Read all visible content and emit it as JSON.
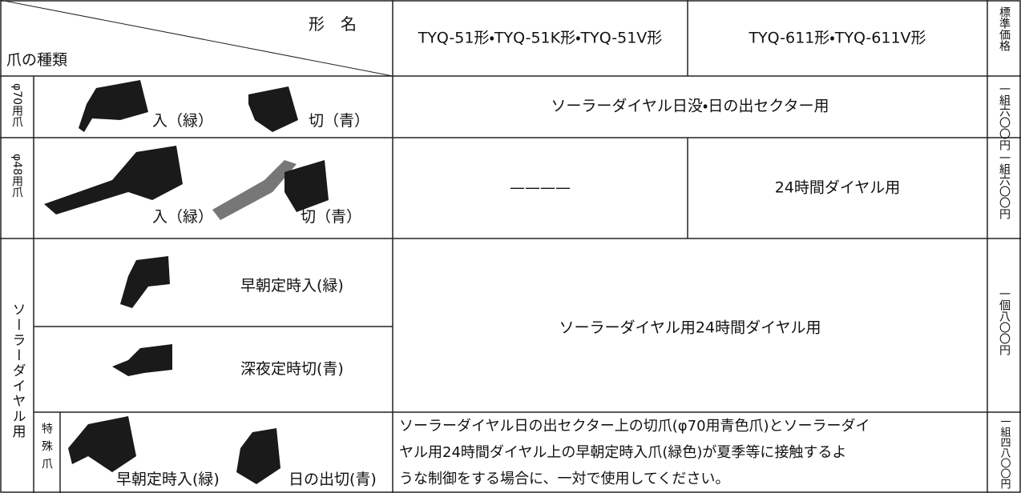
{
  "header": {
    "type_label": "形　名",
    "claw_label": "爪の種類",
    "col1": "TYQ-51形・TYQ-51K形・TYQ-51V形",
    "col2": "TYQ-611形・TYQ-611V形",
    "price": "標準価格"
  },
  "rows": [
    {
      "label": "φ70用爪",
      "claw_on": "入（緑）",
      "claw_off": "切（青）",
      "usage": "ソーラーダイヤル日没・日の出セクター用",
      "price": "一組六〇〇円"
    },
    {
      "label": "φ48用爪",
      "claw_on": "入（緑）",
      "claw_off": "切（青）",
      "usage_col1": "————",
      "usage_col2": "24時間ダイヤル用",
      "price": "一組六〇〇円"
    },
    {
      "label": "ソーラーダイヤル用",
      "claw_morning": "早朝定時入(緑)",
      "claw_night": "深夜定時切(青)",
      "usage": "ソーラーダイヤル用24時間ダイヤル用",
      "price": "一個八〇〇円"
    },
    {
      "label": "特殊爪",
      "claw_morning": "早朝定時入(緑)",
      "claw_sunrise": "日の出切(青)",
      "usage_lines": [
        "ソーラーダイヤル日の出セクター上の切爪(φ70用青色爪)とソーラーダイ",
        "ヤル用24時間ダイヤル上の早朝定時入爪(緑色)が夏季等に接触するよ",
        "うな制御をする場合に、一対で使用してください。"
      ],
      "price": "一組四八〇〇円"
    }
  ]
}
